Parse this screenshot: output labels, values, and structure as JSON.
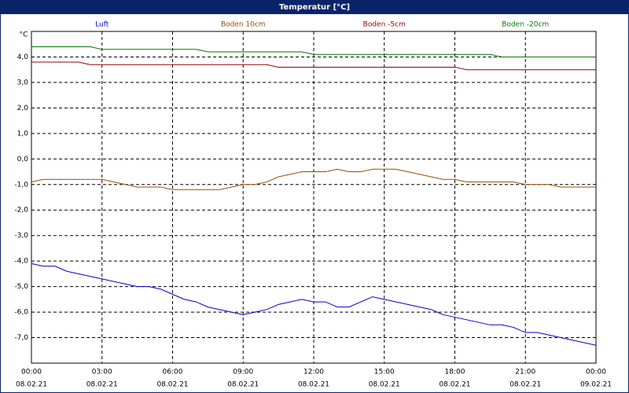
{
  "chart_data": {
    "type": "line",
    "title": "Temperatur [°C]",
    "y_label": "°C",
    "x": [
      0,
      0.5,
      1,
      1.5,
      2,
      2.5,
      3,
      3.5,
      4,
      4.5,
      5,
      5.5,
      6,
      6.5,
      7,
      7.5,
      8,
      8.5,
      9,
      9.5,
      10,
      10.5,
      11,
      11.5,
      12,
      12.5,
      13,
      13.5,
      14,
      14.5,
      15,
      15.5,
      16,
      16.5,
      17,
      17.5,
      18,
      18.5,
      19,
      19.5,
      20,
      20.5,
      21,
      21.5,
      22,
      22.5,
      23,
      23.5,
      24
    ],
    "series": [
      {
        "name": "Luft",
        "color": "#0000cc",
        "values": [
          -4.1,
          -4.2,
          -4.2,
          -4.4,
          -4.5,
          -4.6,
          -4.7,
          -4.8,
          -4.9,
          -5.0,
          -5.0,
          -5.1,
          -5.3,
          -5.5,
          -5.6,
          -5.8,
          -5.9,
          -6.0,
          -6.1,
          -6.0,
          -5.9,
          -5.7,
          -5.6,
          -5.5,
          -5.6,
          -5.6,
          -5.8,
          -5.8,
          -5.6,
          -5.4,
          -5.5,
          -5.6,
          -5.7,
          -5.8,
          -5.9,
          -6.1,
          -6.2,
          -6.3,
          -6.4,
          -6.5,
          -6.5,
          -6.6,
          -6.8,
          -6.8,
          -6.9,
          -7.0,
          -7.1,
          -7.2,
          -7.3
        ]
      },
      {
        "name": "Boden 10cm",
        "color": "#994c00",
        "values": [
          -0.9,
          -0.8,
          -0.8,
          -0.8,
          -0.8,
          -0.8,
          -0.8,
          -0.9,
          -1.0,
          -1.1,
          -1.1,
          -1.1,
          -1.2,
          -1.2,
          -1.2,
          -1.2,
          -1.2,
          -1.1,
          -1.0,
          -1.0,
          -0.9,
          -0.7,
          -0.6,
          -0.5,
          -0.5,
          -0.5,
          -0.4,
          -0.5,
          -0.5,
          -0.4,
          -0.4,
          -0.4,
          -0.5,
          -0.6,
          -0.7,
          -0.8,
          -0.8,
          -0.9,
          -0.9,
          -0.9,
          -0.9,
          -0.9,
          -1.0,
          -1.0,
          -1.0,
          -1.1,
          -1.1,
          -1.1,
          -1.1
        ]
      },
      {
        "name": "Boden -5cm",
        "color": "#990000",
        "values": [
          3.8,
          3.8,
          3.8,
          3.8,
          3.8,
          3.7,
          3.7,
          3.7,
          3.7,
          3.7,
          3.7,
          3.7,
          3.7,
          3.7,
          3.7,
          3.7,
          3.7,
          3.7,
          3.7,
          3.7,
          3.7,
          3.6,
          3.6,
          3.6,
          3.6,
          3.6,
          3.6,
          3.6,
          3.6,
          3.6,
          3.6,
          3.6,
          3.6,
          3.6,
          3.6,
          3.6,
          3.6,
          3.5,
          3.5,
          3.5,
          3.5,
          3.5,
          3.5,
          3.5,
          3.5,
          3.5,
          3.5,
          3.5,
          3.5
        ]
      },
      {
        "name": "Boden -20cm",
        "color": "#007700",
        "values": [
          4.4,
          4.4,
          4.4,
          4.4,
          4.4,
          4.4,
          4.3,
          4.3,
          4.3,
          4.3,
          4.3,
          4.3,
          4.3,
          4.3,
          4.3,
          4.2,
          4.2,
          4.2,
          4.2,
          4.2,
          4.2,
          4.2,
          4.2,
          4.2,
          4.1,
          4.1,
          4.1,
          4.1,
          4.1,
          4.1,
          4.1,
          4.1,
          4.1,
          4.1,
          4.1,
          4.1,
          4.1,
          4.1,
          4.1,
          4.1,
          4.0,
          4.0,
          4.0,
          4.0,
          4.0,
          4.0,
          4.0,
          4.0,
          4.0
        ]
      }
    ],
    "xlim": [
      0,
      24
    ],
    "xticks": [
      {
        "value": 0,
        "label": "00:00"
      },
      {
        "value": 3,
        "label": "03:00"
      },
      {
        "value": 6,
        "label": "06:00"
      },
      {
        "value": 9,
        "label": "09:00"
      },
      {
        "value": 12,
        "label": "12:00"
      },
      {
        "value": 15,
        "label": "15:00"
      },
      {
        "value": 18,
        "label": "18:00"
      },
      {
        "value": 21,
        "label": "21:00"
      },
      {
        "value": 24,
        "label": "00:00"
      }
    ],
    "xtick_dates": [
      "08.02.21",
      "08.02.21",
      "08.02.21",
      "08.02.21",
      "08.02.21",
      "08.02.21",
      "08.02.21",
      "08.02.21",
      "09.02.21"
    ],
    "ylim": [
      -8,
      5
    ],
    "yticks": [
      {
        "value": 4,
        "label": "4,0"
      },
      {
        "value": 3,
        "label": "3,0"
      },
      {
        "value": 2,
        "label": "2,0"
      },
      {
        "value": 1,
        "label": "1,0"
      },
      {
        "value": 0,
        "label": "0,0"
      },
      {
        "value": -1,
        "label": "-1,0"
      },
      {
        "value": -2,
        "label": "-2,0"
      },
      {
        "value": -3,
        "label": "-3,0"
      },
      {
        "value": -4,
        "label": "-4,0"
      },
      {
        "value": -5,
        "label": "-5,0"
      },
      {
        "value": -6,
        "label": "-6,0"
      },
      {
        "value": -7,
        "label": "-7,0"
      }
    ],
    "grid": true
  }
}
